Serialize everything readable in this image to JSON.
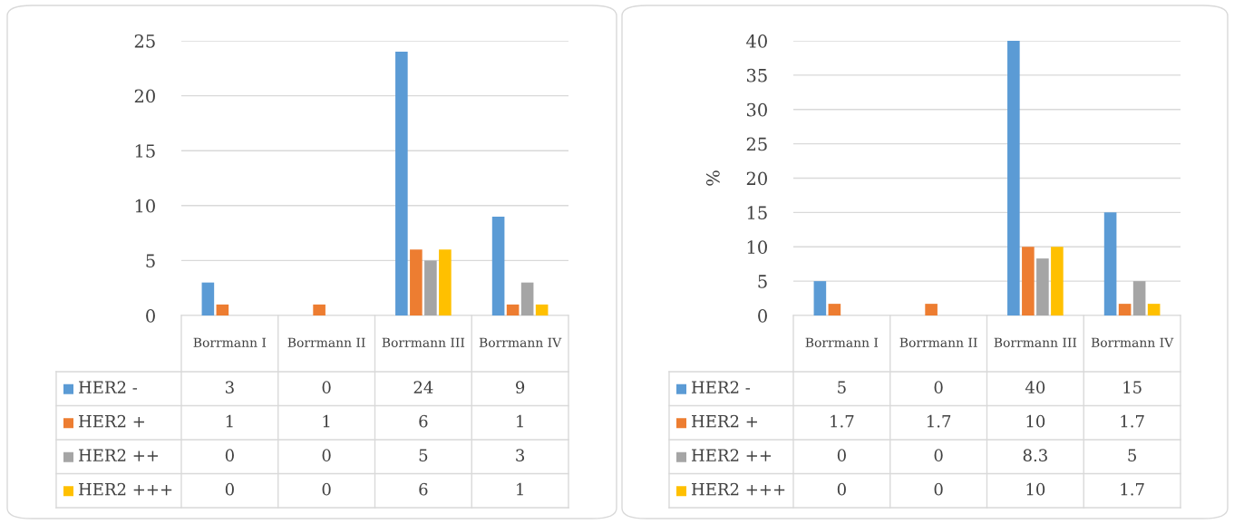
{
  "chart_data": [
    {
      "type": "bar",
      "categories": [
        "Borrmann I",
        "Borrmann II",
        "Borrmann III",
        "Borrmann IV"
      ],
      "series": [
        {
          "name": "HER2 -",
          "color": "#5b9bd5",
          "values": [
            3,
            0,
            24,
            9
          ]
        },
        {
          "name": "HER2 +",
          "color": "#ed7d31",
          "values": [
            1,
            1,
            6,
            1
          ]
        },
        {
          "name": "HER2 ++",
          "color": "#a5a5a5",
          "values": [
            0,
            0,
            5,
            3
          ]
        },
        {
          "name": "HER2 +++",
          "color": "#ffc000",
          "values": [
            0,
            0,
            6,
            1
          ]
        }
      ],
      "ylim": [
        0,
        25
      ],
      "yticks": [
        0,
        5,
        10,
        15,
        20,
        25
      ],
      "grid": "y",
      "legend": "bottom",
      "data_labels": true
    },
    {
      "type": "bar",
      "ylabel": "%",
      "categories": [
        "Borrmann I",
        "Borrmann II",
        "Borrmann III",
        "Borrmann IV"
      ],
      "series": [
        {
          "name": "HER2 -",
          "color": "#5b9bd5",
          "values": [
            5,
            0,
            40,
            15
          ]
        },
        {
          "name": "HER2 +",
          "color": "#ed7d31",
          "values": [
            1.7,
            1.7,
            10,
            1.7
          ]
        },
        {
          "name": "HER2 ++",
          "color": "#a5a5a5",
          "values": [
            0,
            0,
            8.3,
            5
          ]
        },
        {
          "name": "HER2 +++",
          "color": "#ffc000",
          "values": [
            0,
            0,
            10,
            1.7
          ]
        }
      ],
      "ylim": [
        0,
        40
      ],
      "yticks": [
        0,
        5,
        10,
        15,
        20,
        25,
        30,
        35,
        40
      ],
      "grid": "y",
      "legend": "bottom",
      "data_labels": true
    }
  ]
}
